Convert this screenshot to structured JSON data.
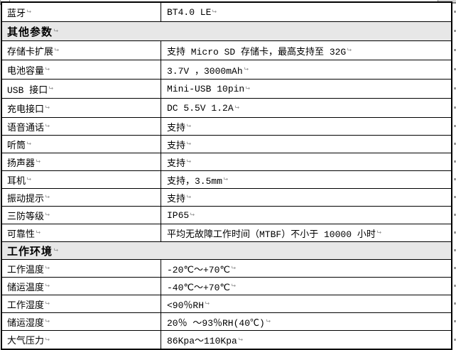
{
  "document": {
    "kind": "word-processor-specification-table",
    "language": "zh-CN"
  },
  "formatting_marks": {
    "paragraph_mark": "↵"
  },
  "colors": {
    "page_bg": "#FFFFFF",
    "border": "#000000",
    "section_header_bg": "#E7E7E7",
    "text": "#000000",
    "paragraph_mark": "#8A8A8A"
  },
  "table": {
    "rows": [
      {
        "kind": "data",
        "label": "蓝牙",
        "value": "BT4.0 LE"
      },
      {
        "kind": "section",
        "label": "其他参数"
      },
      {
        "kind": "data",
        "label": "存储卡扩展",
        "value": "支持 Micro SD 存储卡，最高支持至 32G"
      },
      {
        "kind": "data",
        "label": "电池容量",
        "value": "3.7V ，3000mAh"
      },
      {
        "kind": "data",
        "label": "USB 接口",
        "value": "Mini-USB 10pin"
      },
      {
        "kind": "data",
        "label": "充电接口",
        "value": "DC 5.5V 1.2A"
      },
      {
        "kind": "data",
        "label": "语音通话",
        "value": "支持"
      },
      {
        "kind": "data",
        "label": "听筒",
        "value": "支持"
      },
      {
        "kind": "data",
        "label": "扬声器",
        "value": "支持"
      },
      {
        "kind": "data",
        "label": "耳机",
        "value": "支持，3.5mm"
      },
      {
        "kind": "data",
        "label": "振动提示",
        "value": "支持"
      },
      {
        "kind": "data",
        "label": "三防等级",
        "value": "IP65"
      },
      {
        "kind": "data",
        "label": "可靠性",
        "value": "平均无故障工作时间（MTBF）不小于 10000 小时"
      },
      {
        "kind": "section",
        "label": "工作环境"
      },
      {
        "kind": "data",
        "label": "工作温度",
        "value": "-20℃～+70℃"
      },
      {
        "kind": "data",
        "label": "储运温度",
        "value": "-40℃～+70℃"
      },
      {
        "kind": "data",
        "label": "工作湿度",
        "value": "<90％RH"
      },
      {
        "kind": "data",
        "label": "储运湿度",
        "value": "20％ ～93％RH(40℃)"
      },
      {
        "kind": "data",
        "label": "大气压力",
        "value": "86Kpa～110Kpa"
      }
    ]
  }
}
